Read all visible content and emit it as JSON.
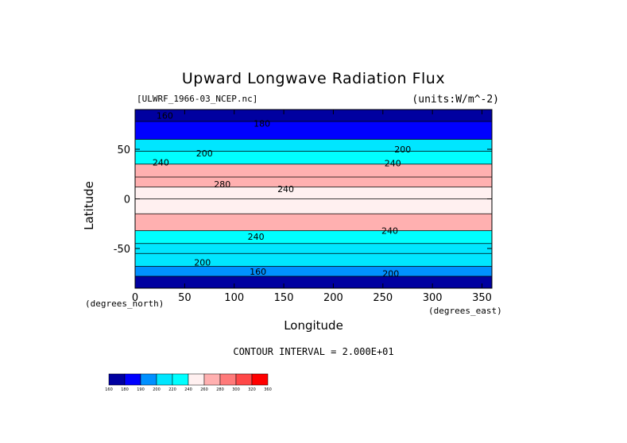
{
  "chart_data": {
    "type": "heatmap",
    "title": "Upward Longwave Radiation Flux",
    "file_label": "[ULWRF_1966-03_NCEP.nc]",
    "units_label": "(units:W/m^-2)",
    "xlabel": "Longitude",
    "ylabel": "Latitude",
    "x_units": "(degrees_east)",
    "y_units": "(degrees_north)",
    "xlim": [
      0,
      360
    ],
    "ylim": [
      -90,
      90
    ],
    "x_ticks": [
      "0",
      "50",
      "100",
      "150",
      "200",
      "250",
      "300",
      "350"
    ],
    "x_tick_values": [
      0,
      50,
      100,
      150,
      200,
      250,
      300,
      350
    ],
    "y_ticks": [
      "50",
      "0",
      "-50"
    ],
    "y_tick_values": [
      50,
      0,
      -50
    ],
    "contour_interval_text": "CONTOUR INTERVAL = 2.000E+01",
    "contour_labels": [
      {
        "text": "180",
        "lon": 128,
        "lat": 76
      },
      {
        "text": "160",
        "lon": 30,
        "lat": 84
      },
      {
        "text": "200",
        "lon": 70,
        "lat": 46
      },
      {
        "text": "240",
        "lon": 26,
        "lat": 37
      },
      {
        "text": "200",
        "lon": 270,
        "lat": 50
      },
      {
        "text": "240",
        "lon": 260,
        "lat": 36
      },
      {
        "text": "280",
        "lon": 88,
        "lat": 15
      },
      {
        "text": "240",
        "lon": 152,
        "lat": 10
      },
      {
        "text": "240",
        "lon": 122,
        "lat": -38
      },
      {
        "text": "240",
        "lon": 257,
        "lat": -32
      },
      {
        "text": "200",
        "lon": 68,
        "lat": -64
      },
      {
        "text": "160",
        "lon": 124,
        "lat": -73
      },
      {
        "text": "200",
        "lon": 258,
        "lat": -75
      }
    ],
    "colorbar": {
      "levels": [
        "160",
        "180",
        "190",
        "200",
        "220",
        "240",
        "260",
        "280",
        "300",
        "320",
        "360"
      ],
      "colors": [
        "#0000a0",
        "#0000ff",
        "#0090ff",
        "#00e6ff",
        "#00ffff",
        "#fff0f0",
        "#ffb0b0",
        "#ff7a7a",
        "#ff4848",
        "#ff0000"
      ]
    },
    "bands": [
      {
        "lat_max": 90,
        "lat_min": 78,
        "value": 170
      },
      {
        "lat_max": 78,
        "lat_min": 60,
        "value": 185
      },
      {
        "lat_max": 60,
        "lat_min": 48,
        "value": 205
      },
      {
        "lat_max": 48,
        "lat_min": 35,
        "value": 225
      },
      {
        "lat_max": 35,
        "lat_min": 22,
        "value": 265
      },
      {
        "lat_max": 22,
        "lat_min": 12,
        "value": 275
      },
      {
        "lat_max": 12,
        "lat_min": 0,
        "value": 250
      },
      {
        "lat_max": 0,
        "lat_min": -15,
        "value": 245
      },
      {
        "lat_max": -15,
        "lat_min": -32,
        "value": 270
      },
      {
        "lat_max": -32,
        "lat_min": -45,
        "value": 235
      },
      {
        "lat_max": -45,
        "lat_min": -55,
        "value": 215
      },
      {
        "lat_max": -55,
        "lat_min": -68,
        "value": 205
      },
      {
        "lat_max": -68,
        "lat_min": -78,
        "value": 190
      },
      {
        "lat_max": -78,
        "lat_min": -90,
        "value": 170
      }
    ]
  }
}
